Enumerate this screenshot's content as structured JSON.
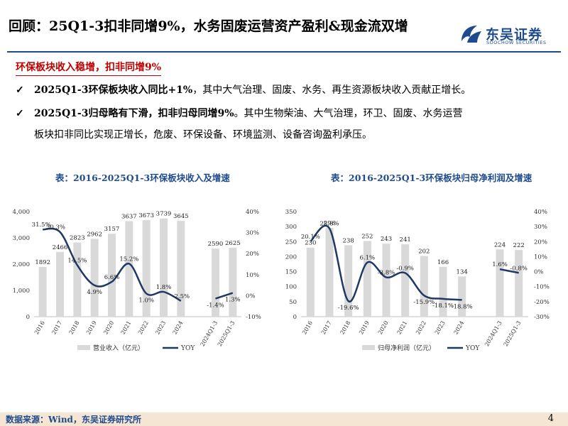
{
  "header": {
    "title": "回顾：25Q1-3扣非同增9%，水务固废运营资产盈利&现金流双增",
    "logo_cn": "东吴证券",
    "logo_en": "SOOCHOW SECURITIES"
  },
  "subheading": "环保板块收入稳增，扣非同增9%",
  "bullets": [
    {
      "check": "✓",
      "bold": "2025Q1-3环保板块收入同比+1%",
      "rest": "，其中大气治理、固废、水务、再生资源板块收入贡献正增长。"
    },
    {
      "check": "✓",
      "bold": "2025Q1-3归母略有下滑，扣非归母同增9%",
      "rest": "。其中生物柴油、大气治理，环卫、固废、水务运营",
      "line2": "板块扣非同比实现正增长，危废、环保设备、环境监测、设备咨询盈利承压。"
    }
  ],
  "chart_titles": [
    "表：2016-2025Q1-3环保板块收入及增速",
    "表：2016-2025Q1-3环保板块归母净利润及增速"
  ],
  "chart_data": [
    {
      "type": "bar",
      "categories": [
        "2016",
        "2017",
        "2018",
        "2019",
        "2020",
        "2021",
        "2022",
        "2023",
        "2024",
        "",
        "2024Q1-3",
        "2025Q1-3"
      ],
      "series": [
        {
          "name": "营业收入（亿元）",
          "type": "bar",
          "axis": "left",
          "values": [
            1892,
            2466,
            2823,
            2962,
            3157,
            3637,
            3673,
            3739,
            3645,
            null,
            2590,
            2625
          ]
        },
        {
          "name": "YOY",
          "type": "line",
          "axis": "right",
          "values": [
            31.5,
            30.3,
            14.5,
            4.9,
            6.6,
            15.2,
            1.0,
            1.8,
            -2.5,
            null,
            -1.4,
            1.3
          ]
        }
      ],
      "value_labels": [
        "1892",
        "2466",
        "2823",
        "2962",
        "3157",
        "3637",
        "3673",
        "3739",
        "3645",
        "",
        "2590",
        "2625"
      ],
      "yoy_labels": [
        "31.5%",
        "30.3%",
        "14.5%",
        "4.9%",
        "6.6%",
        "15.2%",
        "1.0%",
        "1.8%",
        "-2.5%",
        "",
        "-1.4%",
        "1.3%"
      ],
      "left_axis": {
        "ticks": [
          "0",
          "1,000",
          "2,000",
          "3,000",
          "4,000"
        ],
        "range": [
          0,
          4000
        ]
      },
      "right_axis": {
        "ticks": [
          "-10%",
          "0%",
          "10%",
          "20%",
          "30%",
          "40%"
        ],
        "range": [
          -10,
          40
        ]
      },
      "bar_color": "#d9d9d9",
      "line_color": "#1f3864"
    },
    {
      "type": "bar",
      "categories": [
        "2016",
        "2017",
        "2018",
        "2019",
        "2020",
        "2021",
        "2022",
        "2023",
        "2024",
        "",
        "2024Q1-3",
        "2025Q1-3"
      ],
      "series": [
        {
          "name": "归母净利润（亿元）",
          "type": "bar",
          "axis": "left",
          "values": [
            230,
            296,
            238,
            252,
            243,
            241,
            202,
            166,
            134,
            null,
            224,
            222
          ]
        },
        {
          "name": "YOY",
          "type": "line",
          "axis": "right",
          "values": [
            20.1,
            28.8,
            -19.6,
            6.1,
            -3.8,
            -0.9,
            -15.9,
            -18.1,
            -18.8,
            null,
            1.6,
            -0.8
          ]
        }
      ],
      "value_labels": [
        "230",
        "296",
        "238",
        "252",
        "243",
        "241",
        "202",
        "166",
        "134",
        "",
        "224",
        "222"
      ],
      "yoy_labels": [
        "20.1%",
        "28.8%",
        "-19.6%",
        "6.1%",
        "-3.8%",
        "-0.9%",
        "-15.9%",
        "-18.1%",
        "-18.8%",
        "",
        "1.6%",
        "-0.8%"
      ],
      "left_axis": {
        "ticks": [
          "0",
          "50",
          "100",
          "150",
          "200",
          "250",
          "300",
          "350"
        ],
        "range": [
          0,
          350
        ]
      },
      "right_axis": {
        "ticks": [
          "-30%",
          "-20%",
          "-10%",
          "0%",
          "10%",
          "20%",
          "30%",
          "40%"
        ],
        "range": [
          -30,
          40
        ]
      },
      "bar_color": "#d9d9d9",
      "line_color": "#1f3864"
    }
  ],
  "footer": {
    "source": "数据来源：Wind，东吴证券研究所",
    "page": "4"
  },
  "colors": {
    "accent_blue": "#1e4b8e",
    "accent_red": "#c00000",
    "footer_bg": "#f5e6d3"
  }
}
